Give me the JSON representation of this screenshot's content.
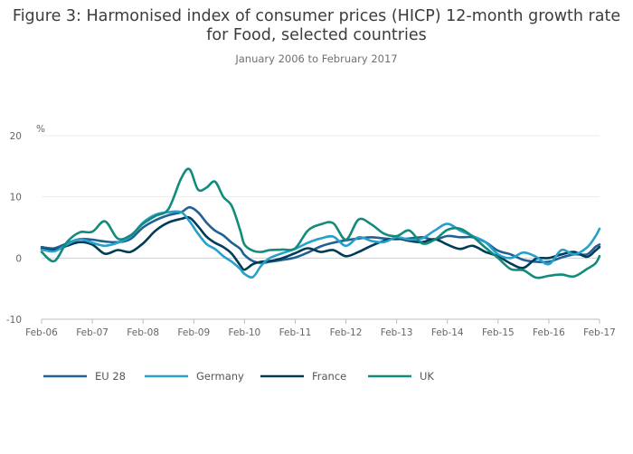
{
  "title": "Figure 3: Harmonised index of consumer prices (HICP) 12-month growth rate for Food, selected countries",
  "subtitle": "January 2006 to February 2017",
  "chart_data": {
    "type": "line",
    "title": "Figure 3: Harmonised index of consumer prices (HICP) 12-month growth rate for Food, selected countries",
    "subtitle": "January 2006 to February 2017",
    "ylabel": "%",
    "xlabel": "",
    "ylim": [
      -10,
      20
    ],
    "yticks": [
      20,
      10,
      0,
      -10
    ],
    "xlim": [
      "Feb-06",
      "Feb-17"
    ],
    "xticks": [
      "Feb-06",
      "Feb-07",
      "Feb-08",
      "Feb-09",
      "Feb-10",
      "Feb-11",
      "Feb-12",
      "Feb-13",
      "Feb-14",
      "Feb-15",
      "Feb-16",
      "Feb-17"
    ],
    "grid": true,
    "legend_position": "bottom-left",
    "x_note": "x values are months since Feb-06 (0 = Feb-06, 132 = Feb-17)",
    "series": [
      {
        "name": "EU 28",
        "color": "#206095",
        "points": [
          [
            0,
            1.8
          ],
          [
            3,
            1.6
          ],
          [
            6,
            2.4
          ],
          [
            9,
            3.1
          ],
          [
            12,
            3.0
          ],
          [
            15,
            2.7
          ],
          [
            18,
            2.6
          ],
          [
            21,
            3.1
          ],
          [
            24,
            5.0
          ],
          [
            27,
            6.2
          ],
          [
            30,
            7.0
          ],
          [
            33,
            7.5
          ],
          [
            35,
            8.3
          ],
          [
            37,
            7.5
          ],
          [
            39,
            5.8
          ],
          [
            41,
            4.5
          ],
          [
            43,
            3.7
          ],
          [
            45,
            2.5
          ],
          [
            47,
            1.5
          ],
          [
            48,
            0.5
          ],
          [
            50,
            -0.5
          ],
          [
            52,
            -0.8
          ],
          [
            54,
            -0.6
          ],
          [
            57,
            -0.3
          ],
          [
            60,
            0.1
          ],
          [
            63,
            0.9
          ],
          [
            66,
            1.9
          ],
          [
            69,
            2.5
          ],
          [
            72,
            2.9
          ],
          [
            75,
            3.2
          ],
          [
            78,
            3.4
          ],
          [
            81,
            3.2
          ],
          [
            84,
            3.1
          ],
          [
            87,
            3.2
          ],
          [
            90,
            3.4
          ],
          [
            93,
            3.0
          ],
          [
            96,
            3.6
          ],
          [
            99,
            3.4
          ],
          [
            102,
            3.4
          ],
          [
            105,
            2.6
          ],
          [
            108,
            1.2
          ],
          [
            111,
            0.6
          ],
          [
            114,
            -0.3
          ],
          [
            117,
            -0.6
          ],
          [
            120,
            -0.6
          ],
          [
            123,
            0.1
          ],
          [
            126,
            0.6
          ],
          [
            129,
            0.6
          ],
          [
            131,
            1.8
          ],
          [
            132,
            2.2
          ]
        ]
      },
      {
        "name": "Germany",
        "color": "#27a0cc",
        "points": [
          [
            0,
            1.4
          ],
          [
            3,
            1.1
          ],
          [
            6,
            2.2
          ],
          [
            9,
            3.1
          ],
          [
            12,
            2.5
          ],
          [
            15,
            2.0
          ],
          [
            18,
            2.5
          ],
          [
            21,
            3.5
          ],
          [
            24,
            5.8
          ],
          [
            27,
            7.1
          ],
          [
            30,
            7.5
          ],
          [
            33,
            7.5
          ],
          [
            35,
            6.0
          ],
          [
            37,
            4.0
          ],
          [
            39,
            2.3
          ],
          [
            41,
            1.5
          ],
          [
            43,
            0.3
          ],
          [
            45,
            -0.6
          ],
          [
            47,
            -1.8
          ],
          [
            48,
            -2.6
          ],
          [
            50,
            -3.1
          ],
          [
            52,
            -1.2
          ],
          [
            54,
            0.0
          ],
          [
            57,
            0.8
          ],
          [
            60,
            1.5
          ],
          [
            63,
            2.5
          ],
          [
            66,
            3.2
          ],
          [
            69,
            3.5
          ],
          [
            72,
            2.0
          ],
          [
            75,
            3.4
          ],
          [
            78,
            2.8
          ],
          [
            81,
            2.6
          ],
          [
            84,
            3.4
          ],
          [
            87,
            3.0
          ],
          [
            90,
            3.2
          ],
          [
            93,
            4.5
          ],
          [
            96,
            5.6
          ],
          [
            99,
            4.5
          ],
          [
            102,
            3.6
          ],
          [
            105,
            2.6
          ],
          [
            108,
            0.6
          ],
          [
            111,
            0.0
          ],
          [
            114,
            0.9
          ],
          [
            117,
            0.2
          ],
          [
            120,
            -1.0
          ],
          [
            123,
            1.3
          ],
          [
            126,
            0.6
          ],
          [
            129,
            1.7
          ],
          [
            131,
            3.5
          ],
          [
            132,
            4.8
          ]
        ]
      },
      {
        "name": "France",
        "color": "#003c57",
        "points": [
          [
            0,
            1.5
          ],
          [
            3,
            1.3
          ],
          [
            6,
            2.0
          ],
          [
            9,
            2.6
          ],
          [
            12,
            2.2
          ],
          [
            15,
            0.7
          ],
          [
            18,
            1.3
          ],
          [
            21,
            1.0
          ],
          [
            24,
            2.4
          ],
          [
            27,
            4.5
          ],
          [
            30,
            5.8
          ],
          [
            33,
            6.4
          ],
          [
            35,
            6.6
          ],
          [
            37,
            5.2
          ],
          [
            39,
            3.5
          ],
          [
            41,
            2.5
          ],
          [
            43,
            1.8
          ],
          [
            45,
            0.7
          ],
          [
            47,
            -1.2
          ],
          [
            48,
            -1.9
          ],
          [
            50,
            -1.0
          ],
          [
            52,
            -0.6
          ],
          [
            54,
            -0.5
          ],
          [
            57,
            0.0
          ],
          [
            60,
            0.8
          ],
          [
            63,
            1.6
          ],
          [
            66,
            1.0
          ],
          [
            69,
            1.3
          ],
          [
            72,
            0.3
          ],
          [
            75,
            1.0
          ],
          [
            78,
            2.0
          ],
          [
            81,
            2.8
          ],
          [
            84,
            3.2
          ],
          [
            87,
            2.8
          ],
          [
            90,
            2.6
          ],
          [
            93,
            3.1
          ],
          [
            96,
            2.2
          ],
          [
            99,
            1.5
          ],
          [
            102,
            2.0
          ],
          [
            105,
            1.0
          ],
          [
            108,
            0.3
          ],
          [
            111,
            -0.9
          ],
          [
            114,
            -1.6
          ],
          [
            117,
            -0.1
          ],
          [
            120,
            0.0
          ],
          [
            123,
            0.6
          ],
          [
            126,
            1.0
          ],
          [
            129,
            0.2
          ],
          [
            131,
            1.2
          ],
          [
            132,
            1.8
          ]
        ]
      },
      {
        "name": "UK",
        "color": "#118c7b",
        "points": [
          [
            0,
            1.0
          ],
          [
            3,
            -0.5
          ],
          [
            6,
            2.6
          ],
          [
            9,
            4.2
          ],
          [
            12,
            4.3
          ],
          [
            15,
            6.0
          ],
          [
            18,
            3.2
          ],
          [
            21,
            3.7
          ],
          [
            24,
            5.6
          ],
          [
            27,
            6.9
          ],
          [
            30,
            8.0
          ],
          [
            33,
            13.0
          ],
          [
            35,
            14.5
          ],
          [
            37,
            11.2
          ],
          [
            39,
            11.5
          ],
          [
            41,
            12.5
          ],
          [
            43,
            10.0
          ],
          [
            45,
            8.5
          ],
          [
            47,
            4.5
          ],
          [
            48,
            2.2
          ],
          [
            50,
            1.2
          ],
          [
            52,
            1.0
          ],
          [
            54,
            1.3
          ],
          [
            57,
            1.4
          ],
          [
            60,
            1.6
          ],
          [
            63,
            4.5
          ],
          [
            66,
            5.5
          ],
          [
            69,
            5.7
          ],
          [
            72,
            3.0
          ],
          [
            75,
            6.3
          ],
          [
            78,
            5.5
          ],
          [
            81,
            4.0
          ],
          [
            84,
            3.6
          ],
          [
            87,
            4.5
          ],
          [
            90,
            2.4
          ],
          [
            93,
            3.0
          ],
          [
            96,
            4.6
          ],
          [
            99,
            4.8
          ],
          [
            102,
            3.5
          ],
          [
            105,
            1.7
          ],
          [
            108,
            0.0
          ],
          [
            111,
            -1.8
          ],
          [
            114,
            -2.0
          ],
          [
            117,
            -3.2
          ],
          [
            120,
            -2.9
          ],
          [
            123,
            -2.7
          ],
          [
            126,
            -3.0
          ],
          [
            129,
            -1.8
          ],
          [
            131,
            -0.9
          ],
          [
            132,
            0.3
          ]
        ]
      }
    ]
  }
}
